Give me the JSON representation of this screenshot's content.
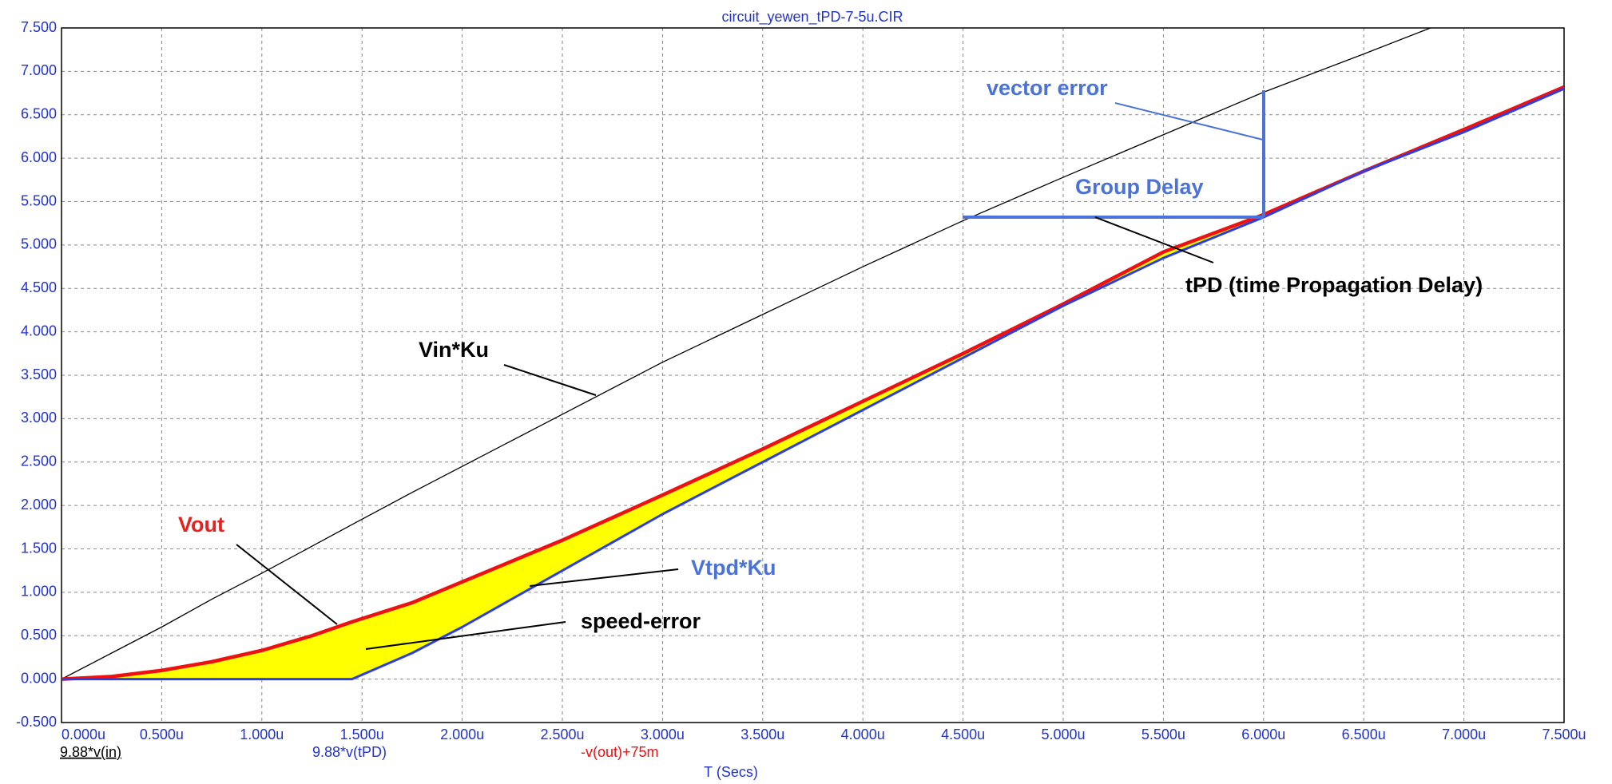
{
  "chart_data": {
    "type": "line",
    "title": "circuit_yewen_tPD-7-5u.CIR",
    "xlabel": "T (Secs)",
    "x": [
      0,
      0.25,
      0.5,
      0.75,
      1,
      1.25,
      1.45,
      1.75,
      2,
      2.5,
      3,
      3.5,
      4,
      4.5,
      5,
      5.5,
      6,
      6.5,
      7,
      7.5
    ],
    "series": [
      {
        "name": "9.88*v(in)",
        "color": "#000000",
        "values": [
          0,
          0.3,
          0.6,
          0.92,
          1.22,
          1.53,
          1.78,
          2.15,
          2.45,
          3.05,
          3.65,
          4.2,
          4.75,
          5.28,
          5.78,
          6.27,
          6.76,
          7.2,
          7.65,
          8.08
        ]
      },
      {
        "name": "9.88*v(tPD)",
        "color": "#2c3fe0",
        "values": [
          0,
          0,
          0,
          0,
          0,
          0,
          0,
          0.3,
          0.6,
          1.25,
          1.9,
          2.5,
          3.1,
          3.7,
          4.3,
          4.85,
          5.32,
          5.85,
          6.3,
          6.8
        ]
      },
      {
        "name": "-v(out)+75m",
        "color": "#ee1111",
        "values": [
          0,
          0.03,
          0.1,
          0.2,
          0.33,
          0.5,
          0.66,
          0.88,
          1.12,
          1.6,
          2.12,
          2.65,
          3.2,
          3.75,
          4.32,
          4.92,
          5.35,
          5.85,
          6.33,
          6.82
        ]
      }
    ],
    "fill_color": "#ffff00",
    "grid": true,
    "xlim": [
      0,
      7.5
    ],
    "xticks": [
      {
        "value": 0,
        "label": "0.000u"
      },
      {
        "value": 0.5,
        "label": "0.500u"
      },
      {
        "value": 1,
        "label": "1.000u"
      },
      {
        "value": 1.5,
        "label": "1.500u"
      },
      {
        "value": 2,
        "label": "2.000u"
      },
      {
        "value": 2.5,
        "label": "2.500u"
      },
      {
        "value": 3,
        "label": "3.000u"
      },
      {
        "value": 3.5,
        "label": "3.500u"
      },
      {
        "value": 4,
        "label": "4.000u"
      },
      {
        "value": 4.5,
        "label": "4.500u"
      },
      {
        "value": 5,
        "label": "5.000u"
      },
      {
        "value": 5.5,
        "label": "5.500u"
      },
      {
        "value": 6,
        "label": "6.000u"
      },
      {
        "value": 6.5,
        "label": "6.500u"
      },
      {
        "value": 7,
        "label": "7.000u"
      },
      {
        "value": 7.5,
        "label": "7.500u"
      }
    ],
    "ylim": [
      -0.5,
      7.5
    ],
    "yticks": [
      {
        "value": -0.5,
        "label": "-0.500"
      },
      {
        "value": 0,
        "label": "0.000"
      },
      {
        "value": 0.5,
        "label": "0.500"
      },
      {
        "value": 1,
        "label": "1.000"
      },
      {
        "value": 1.5,
        "label": "1.500"
      },
      {
        "value": 2,
        "label": "2.000"
      },
      {
        "value": 2.5,
        "label": "2.500"
      },
      {
        "value": 3,
        "label": "3.000"
      },
      {
        "value": 3.5,
        "label": "3.500"
      },
      {
        "value": 4,
        "label": "4.000"
      },
      {
        "value": 4.5,
        "label": "4.500"
      },
      {
        "value": 5,
        "label": "5.000"
      },
      {
        "value": 5.5,
        "label": "5.500"
      },
      {
        "value": 6,
        "label": "6.000"
      },
      {
        "value": 6.5,
        "label": "6.500"
      },
      {
        "value": 7,
        "label": "7.000"
      },
      {
        "value": 7.5,
        "label": "7.500"
      }
    ],
    "annotations": [
      {
        "text": "vector error",
        "color": "#4a72d8"
      },
      {
        "text": "Group Delay",
        "color": "#4a72d8"
      },
      {
        "text": "tPD (time Propagation Delay)",
        "color": "#000000"
      },
      {
        "text": "Vin*Ku",
        "color": "#000000"
      },
      {
        "text": "Vout",
        "color": "#e82020"
      },
      {
        "text": "Vtpd*Ku",
        "color": "#4a72d8"
      },
      {
        "text": "speed-error",
        "color": "#000000"
      }
    ]
  }
}
